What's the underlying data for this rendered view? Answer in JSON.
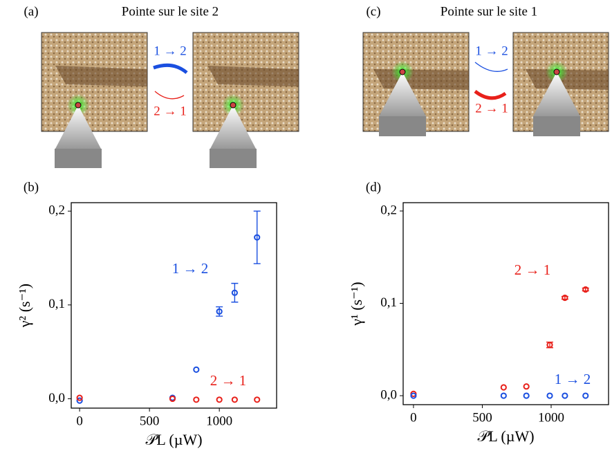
{
  "panels": [
    {
      "label": "(a)",
      "title": "Pointe sur le site 2",
      "forward": "1 → 2",
      "backward": "2 → 1"
    },
    {
      "label": "(c)",
      "title": "Pointe sur le site 1",
      "forward": "1 → 2",
      "backward": "2 → 1"
    }
  ],
  "chart_data": [
    {
      "type": "scatter",
      "label": "(b)",
      "xlabel": "𝒫L (µW)",
      "ylabel": "γ² (s⁻¹)",
      "xlim": [
        -60,
        1410
      ],
      "ylim": [
        -0.01,
        0.209
      ],
      "xticks": [
        0,
        500,
        1000
      ],
      "yticks": [
        {
          "value": 0,
          "label": "0,0"
        },
        {
          "value": 0.1,
          "label": "0,1"
        },
        {
          "value": 0.2,
          "label": "0,2"
        }
      ],
      "series": [
        {
          "name": "1 → 2",
          "color": "#1a4fe0",
          "x": [
            0,
            665,
            835,
            1000,
            1110,
            1270
          ],
          "values": [
            -0.002,
            0.001,
            0.031,
            0.093,
            0.113,
            0.172
          ],
          "errors": [
            null,
            null,
            null,
            0.005,
            0.01,
            0.028
          ]
        },
        {
          "name": "2 → 1",
          "color": "#e8201a",
          "x": [
            0,
            665,
            835,
            1000,
            1110,
            1270
          ],
          "values": [
            0.001,
            0,
            -0.001,
            -0.001,
            -0.001,
            -0.001
          ],
          "errors": [
            null,
            null,
            null,
            null,
            null,
            null
          ]
        }
      ]
    },
    {
      "type": "scatter",
      "label": "(d)",
      "xlabel": "𝒫L (µW)",
      "ylabel": "γ¹ (s⁻¹)",
      "xlim": [
        -75,
        1417
      ],
      "ylim": [
        -0.0097,
        0.209
      ],
      "xticks": [
        0,
        500,
        1000
      ],
      "yticks": [
        {
          "value": 0,
          "label": "0,0"
        },
        {
          "value": 0.1,
          "label": "0,1"
        },
        {
          "value": 0.2,
          "label": "0,2"
        }
      ],
      "series": [
        {
          "name": "2 → 1",
          "color": "#e8201a",
          "x": [
            0,
            655,
            820,
            990,
            1100,
            1250
          ],
          "values": [
            0.002,
            0.009,
            0.01,
            0.055,
            0.106,
            0.115
          ],
          "errors": [
            null,
            null,
            null,
            0.003,
            0.0015,
            0.0015
          ]
        },
        {
          "name": "1 → 2",
          "color": "#1a4fe0",
          "x": [
            0,
            655,
            820,
            990,
            1100,
            1250
          ],
          "values": [
            0,
            0,
            0,
            0,
            0,
            0
          ],
          "errors": [
            null,
            null,
            null,
            null,
            null,
            null
          ]
        }
      ]
    }
  ]
}
